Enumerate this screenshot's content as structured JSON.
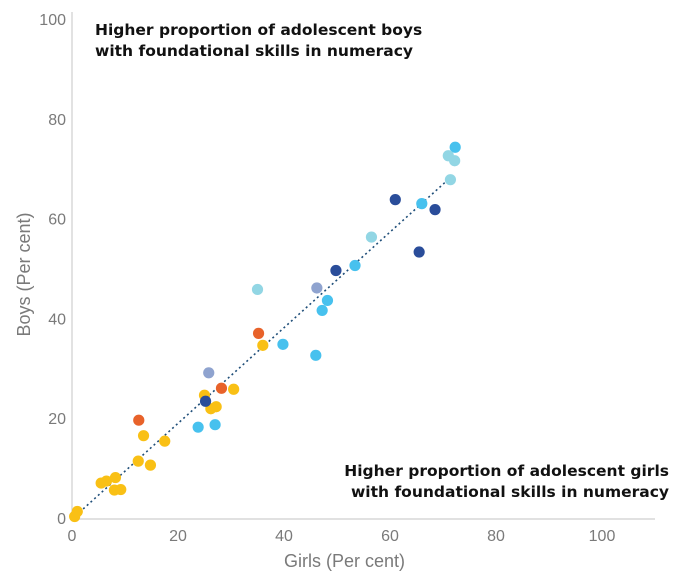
{
  "chart_data": {
    "type": "scatter",
    "xlabel": "Girls (Per cent)",
    "ylabel": "Boys (Per cent)",
    "xlim": [
      0,
      110
    ],
    "ylim": [
      0,
      100
    ],
    "x_ticks": [
      "0",
      "20",
      "40",
      "60",
      "80",
      "100"
    ],
    "y_ticks": [
      "0",
      "20",
      "40",
      "60",
      "80",
      "100"
    ],
    "grid": false,
    "annotations": {
      "top_left": [
        "Higher proportion of adolescent boys",
        "with foundational skills in numeracy"
      ],
      "bottom_right": [
        "Higher proportion of adolescent girls",
        "with foundational skills in numeracy"
      ]
    },
    "trendline": {
      "style": "dotted",
      "color": "#1f4e79",
      "from": [
        0,
        0
      ],
      "to": [
        72,
        69
      ]
    },
    "colors": {
      "yellow": "#f9c015",
      "orange": "#e8622a",
      "skyblue": "#47c1ee",
      "lightblue": "#92d6e4",
      "navy": "#2a4d9a",
      "lavender": "#8fa3cf"
    },
    "points": [
      {
        "x": 0.5,
        "y": 0.5,
        "color": "yellow"
      },
      {
        "x": 1,
        "y": 1.5,
        "color": "yellow"
      },
      {
        "x": 5.5,
        "y": 7.2,
        "color": "yellow"
      },
      {
        "x": 6.5,
        "y": 7.6,
        "color": "yellow"
      },
      {
        "x": 8.2,
        "y": 8.3,
        "color": "yellow"
      },
      {
        "x": 8,
        "y": 5.8,
        "color": "yellow"
      },
      {
        "x": 9.2,
        "y": 5.9,
        "color": "yellow"
      },
      {
        "x": 12.5,
        "y": 11.6,
        "color": "yellow"
      },
      {
        "x": 13.5,
        "y": 16.7,
        "color": "yellow"
      },
      {
        "x": 14.8,
        "y": 10.8,
        "color": "yellow"
      },
      {
        "x": 17.5,
        "y": 15.6,
        "color": "yellow"
      },
      {
        "x": 25,
        "y": 24.8,
        "color": "yellow"
      },
      {
        "x": 26.2,
        "y": 22.1,
        "color": "yellow"
      },
      {
        "x": 27.2,
        "y": 22.5,
        "color": "yellow"
      },
      {
        "x": 30.5,
        "y": 26,
        "color": "yellow"
      },
      {
        "x": 36,
        "y": 34.8,
        "color": "yellow"
      },
      {
        "x": 12.6,
        "y": 19.8,
        "color": "orange"
      },
      {
        "x": 28.2,
        "y": 26.2,
        "color": "orange"
      },
      {
        "x": 35.2,
        "y": 37.2,
        "color": "orange"
      },
      {
        "x": 23.8,
        "y": 18.4,
        "color": "skyblue"
      },
      {
        "x": 27,
        "y": 18.9,
        "color": "skyblue"
      },
      {
        "x": 39.8,
        "y": 35,
        "color": "skyblue"
      },
      {
        "x": 46,
        "y": 32.8,
        "color": "skyblue"
      },
      {
        "x": 47.2,
        "y": 41.8,
        "color": "skyblue"
      },
      {
        "x": 48.2,
        "y": 43.8,
        "color": "skyblue"
      },
      {
        "x": 53.4,
        "y": 50.8,
        "color": "skyblue"
      },
      {
        "x": 66,
        "y": 63.2,
        "color": "skyblue"
      },
      {
        "x": 72.3,
        "y": 74.5,
        "color": "skyblue"
      },
      {
        "x": 35,
        "y": 46,
        "color": "lightblue"
      },
      {
        "x": 56.5,
        "y": 56.5,
        "color": "lightblue"
      },
      {
        "x": 71,
        "y": 72.8,
        "color": "lightblue"
      },
      {
        "x": 72.2,
        "y": 71.8,
        "color": "lightblue"
      },
      {
        "x": 71.4,
        "y": 68,
        "color": "lightblue"
      },
      {
        "x": 25.2,
        "y": 23.6,
        "color": "navy"
      },
      {
        "x": 49.8,
        "y": 49.8,
        "color": "navy"
      },
      {
        "x": 61,
        "y": 64,
        "color": "navy"
      },
      {
        "x": 65.5,
        "y": 53.5,
        "color": "navy"
      },
      {
        "x": 68.5,
        "y": 62,
        "color": "navy"
      },
      {
        "x": 25.8,
        "y": 29.3,
        "color": "lavender"
      },
      {
        "x": 46.2,
        "y": 46.3,
        "color": "lavender"
      }
    ]
  }
}
